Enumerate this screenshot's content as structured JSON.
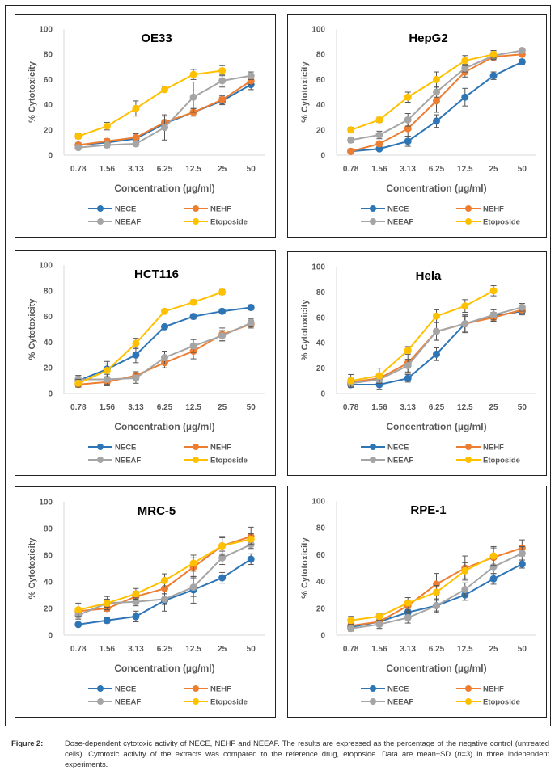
{
  "figure": {
    "label": "Figure 2:",
    "caption_parts": [
      "Dose-dependent cytotoxic activity of NECE, NEHF and NEEAF. The results are expressed as the percentage of the negative control (untreated cells). Cytotoxic activity of the extracts was compared to the reference drug, etoposide. Data are mean±SD (",
      "n",
      "=3) in three independent experiments."
    ]
  },
  "colors": {
    "NECE": "#2E75B6",
    "NEHF": "#ED7D31",
    "NEEAF": "#A5A5A5",
    "Etoposide": "#FFC000"
  },
  "chart_data": [
    {
      "type": "line",
      "title": "OE33",
      "xlabel": "Concentration (µg/ml)",
      "ylabel": "% Cytotoxicity",
      "categories": [
        "0.78",
        "1.56",
        "3.13",
        "6.25",
        "12.5",
        "25",
        "50"
      ],
      "ylim": [
        0,
        100
      ],
      "yticks": [
        0,
        20,
        40,
        60,
        80,
        100
      ],
      "grid": false,
      "legend": "bottom",
      "series": [
        {
          "name": "NECE",
          "values": [
            8,
            10,
            13,
            25,
            34,
            43,
            56
          ],
          "err": [
            1,
            2,
            2,
            3,
            3,
            3,
            4
          ]
        },
        {
          "name": "NEHF",
          "values": [
            8,
            11,
            14,
            26,
            34,
            44,
            59
          ],
          "err": [
            2,
            2,
            3,
            5,
            3,
            3,
            3
          ]
        },
        {
          "name": "NEEAF",
          "values": [
            6,
            8,
            9,
            22,
            46,
            59,
            63
          ],
          "err": [
            1,
            2,
            2,
            10,
            12,
            5,
            3
          ]
        },
        {
          "name": "Etoposide",
          "values": [
            15,
            23,
            37,
            52,
            64,
            67,
            null
          ],
          "err": [
            2,
            3,
            6,
            2,
            4,
            4,
            null
          ]
        }
      ]
    },
    {
      "type": "line",
      "title": "HepG2",
      "xlabel": "Concentration (µg/ml)",
      "ylabel": "% Cytotoxicity",
      "categories": [
        "0.78",
        "1.56",
        "3.13",
        "6.25",
        "12.5",
        "25",
        "50"
      ],
      "ylim": [
        0,
        100
      ],
      "yticks": [
        0,
        20,
        40,
        60,
        80,
        100
      ],
      "grid": false,
      "legend": "bottom",
      "series": [
        {
          "name": "NECE",
          "values": [
            3,
            5,
            11,
            27,
            46,
            63,
            74
          ],
          "err": [
            2,
            1,
            4,
            5,
            7,
            3,
            2
          ]
        },
        {
          "name": "NEHF",
          "values": [
            3,
            9,
            21,
            43,
            66,
            78,
            80
          ],
          "err": [
            1,
            2,
            6,
            9,
            4,
            3,
            2
          ]
        },
        {
          "name": "NEEAF",
          "values": [
            12,
            16,
            28,
            50,
            69,
            79,
            83
          ],
          "err": [
            2,
            3,
            5,
            4,
            3,
            3,
            1
          ]
        },
        {
          "name": "Etoposide",
          "values": [
            20,
            28,
            46,
            60,
            75,
            80,
            null
          ],
          "err": [
            2,
            2,
            4,
            6,
            4,
            3,
            null
          ]
        }
      ]
    },
    {
      "type": "line",
      "title": "HCT116",
      "xlabel": "Concentration (µg/ml)",
      "ylabel": "% Cytotoxicity",
      "categories": [
        "0.78",
        "1.56",
        "3.13",
        "6.25",
        "12.5",
        "25",
        "50"
      ],
      "ylim": [
        0,
        100
      ],
      "yticks": [
        0,
        20,
        40,
        60,
        80,
        100
      ],
      "grid": false,
      "legend": "bottom",
      "series": [
        {
          "name": "NECE",
          "values": [
            10,
            19,
            30,
            52,
            60,
            64,
            67
          ],
          "err": [
            4,
            6,
            6,
            1,
            2,
            1,
            2
          ]
        },
        {
          "name": "NEHF",
          "values": [
            7,
            9,
            14,
            24,
            33,
            46,
            54
          ],
          "err": [
            2,
            3,
            3,
            4,
            6,
            5,
            3
          ]
        },
        {
          "name": "NEEAF",
          "values": [
            11,
            11,
            12,
            28,
            37,
            45,
            55
          ],
          "err": [
            3,
            4,
            4,
            5,
            5,
            4,
            3
          ]
        },
        {
          "name": "Etoposide",
          "values": [
            8,
            18,
            39,
            64,
            71,
            79,
            null
          ],
          "err": [
            3,
            5,
            4,
            1,
            2,
            2,
            null
          ]
        }
      ]
    },
    {
      "type": "line",
      "title": "Hela",
      "xlabel": "Concentration (µg/ml)",
      "ylabel": "% Cytotoxicity",
      "categories": [
        "0.78",
        "1.56",
        "3.13",
        "6.25",
        "12.5",
        "25",
        "50"
      ],
      "ylim": [
        0,
        100
      ],
      "yticks": [
        0,
        20,
        40,
        60,
        80,
        100
      ],
      "grid": false,
      "legend": "bottom",
      "series": [
        {
          "name": "NECE",
          "values": [
            7,
            7,
            12,
            31,
            55,
            61,
            65
          ],
          "err": [
            2,
            4,
            3,
            5,
            7,
            3,
            3
          ]
        },
        {
          "name": "NEHF",
          "values": [
            9,
            12,
            24,
            49,
            55,
            60,
            66
          ],
          "err": [
            3,
            3,
            8,
            7,
            6,
            3,
            3
          ]
        },
        {
          "name": "NEEAF",
          "values": [
            8,
            11,
            22,
            49,
            55,
            62,
            68
          ],
          "err": [
            3,
            3,
            5,
            7,
            6,
            4,
            3
          ]
        },
        {
          "name": "Etoposide",
          "values": [
            10,
            14,
            34,
            61,
            69,
            81,
            null
          ],
          "err": [
            5,
            6,
            3,
            5,
            5,
            4,
            null
          ]
        }
      ]
    },
    {
      "type": "line",
      "title": "MRC-5",
      "xlabel": "Concentration (µg/ml)",
      "ylabel": "% Cytotoxicity",
      "categories": [
        "0.78",
        "1.56",
        "3.13",
        "6.25",
        "12.5",
        "25",
        "50"
      ],
      "ylim": [
        0,
        100
      ],
      "yticks": [
        0,
        20,
        40,
        60,
        80,
        100
      ],
      "grid": false,
      "legend": "bottom",
      "series": [
        {
          "name": "NECE",
          "values": [
            8,
            11,
            14,
            26,
            34,
            43,
            57
          ],
          "err": [
            1,
            2,
            4,
            8,
            10,
            4,
            4
          ]
        },
        {
          "name": "NEHF",
          "values": [
            18,
            20,
            29,
            35,
            51,
            67,
            74
          ],
          "err": [
            2,
            2,
            4,
            4,
            7,
            6,
            7
          ]
        },
        {
          "name": "NEEAF",
          "values": [
            15,
            24,
            25,
            27,
            36,
            58,
            68
          ],
          "err": [
            3,
            3,
            3,
            4,
            7,
            5,
            3
          ]
        },
        {
          "name": "Etoposide",
          "values": [
            19,
            24,
            31,
            41,
            54,
            67,
            72
          ],
          "err": [
            5,
            5,
            4,
            5,
            6,
            7,
            4
          ]
        }
      ]
    },
    {
      "type": "line",
      "title": "RPE-1",
      "xlabel": "Concentration (µg/ml)",
      "ylabel": "% Cytotoxicity",
      "categories": [
        "0.78",
        "1.56",
        "3.13",
        "6.25",
        "12.5",
        "25",
        "50"
      ],
      "ylim": [
        0,
        100
      ],
      "yticks": [
        0,
        20,
        40,
        60,
        80,
        100
      ],
      "grid": false,
      "legend": "bottom",
      "series": [
        {
          "name": "NECE",
          "values": [
            6,
            10,
            17,
            22,
            30,
            42,
            53
          ],
          "err": [
            2,
            2,
            2,
            4,
            4,
            4,
            3
          ]
        },
        {
          "name": "NEHF",
          "values": [
            7,
            10,
            22,
            38,
            50,
            58,
            65
          ],
          "err": [
            2,
            3,
            4,
            8,
            9,
            7,
            6
          ]
        },
        {
          "name": "NEEAF",
          "values": [
            5,
            8,
            13,
            22,
            34,
            51,
            61
          ],
          "err": [
            2,
            3,
            4,
            5,
            5,
            6,
            5
          ]
        },
        {
          "name": "Etoposide",
          "values": [
            11,
            14,
            24,
            32,
            48,
            59,
            null
          ],
          "err": [
            3,
            2,
            4,
            5,
            6,
            7,
            null
          ]
        }
      ]
    }
  ]
}
